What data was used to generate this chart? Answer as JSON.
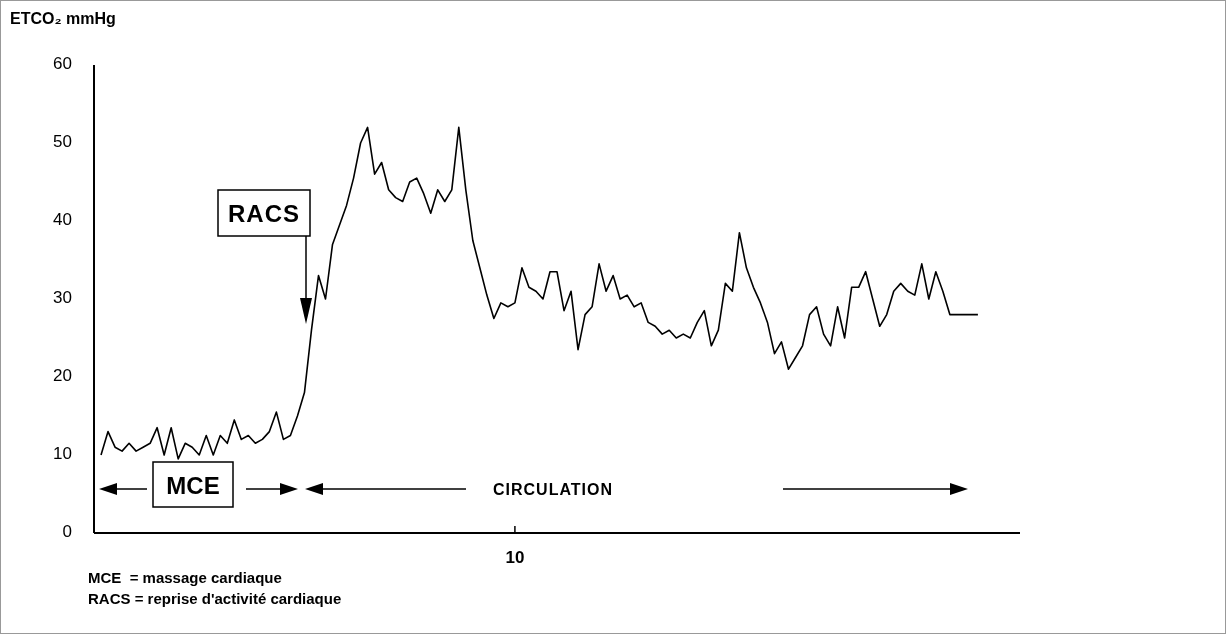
{
  "chart_data": {
    "type": "line",
    "ylabel": "ETCO₂ mmHg",
    "categories": [
      null,
      null,
      null,
      null,
      null,
      null,
      null,
      null,
      null,
      null,
      null,
      null,
      null,
      null,
      null,
      null,
      null,
      null,
      null,
      null,
      null,
      null,
      null,
      null,
      null,
      null,
      null,
      null,
      null,
      null,
      null,
      null,
      null,
      null,
      null,
      null,
      null,
      null,
      null,
      null,
      null,
      null,
      null,
      null,
      null,
      null,
      null,
      null,
      null,
      null,
      null,
      null,
      null,
      null,
      null,
      null,
      null,
      null,
      null,
      null,
      "10",
      null,
      null,
      null,
      null,
      null,
      null,
      null,
      null,
      null,
      null,
      null,
      null,
      null,
      null,
      null,
      null,
      null,
      null,
      null,
      null,
      null,
      null,
      null,
      null,
      null,
      null,
      null,
      null,
      null,
      null,
      null,
      null,
      null,
      null,
      null,
      null,
      null,
      null,
      null,
      null,
      null,
      null,
      null,
      null,
      null,
      null,
      null,
      null,
      null,
      null,
      null,
      null,
      null,
      null,
      null,
      null,
      null,
      null,
      null,
      null,
      null,
      null,
      null,
      null,
      null,
      null,
      null,
      null,
      null,
      null,
      null,
      null
    ],
    "values": [
      null,
      10,
      13,
      11,
      10.5,
      11.5,
      10.5,
      11,
      11.5,
      13.5,
      10,
      13.5,
      9.5,
      11.5,
      11,
      10,
      12.5,
      10,
      12.5,
      11.5,
      14.5,
      12,
      12.5,
      11.5,
      12,
      13,
      15.5,
      12,
      12.5,
      15,
      18,
      26,
      33,
      30,
      37,
      39.5,
      42,
      45.5,
      50,
      52,
      46,
      47.5,
      44,
      43,
      42.5,
      45,
      45.5,
      43.5,
      41,
      44,
      42.5,
      44,
      52,
      44,
      37.5,
      34,
      30.5,
      27.5,
      29.5,
      29,
      29.5,
      34,
      31.5,
      31,
      30,
      33.5,
      33.5,
      28.5,
      31,
      23.5,
      28,
      29,
      34.5,
      31,
      33,
      30,
      30.5,
      29,
      29.5,
      27,
      26.5,
      25.5,
      26,
      25,
      25.5,
      25,
      27,
      28.5,
      24,
      26,
      32,
      31,
      38.5,
      34,
      31.5,
      29.5,
      27,
      23,
      24.5,
      21,
      22.5,
      24,
      28,
      29,
      25.5,
      24,
      29,
      25,
      31.5,
      31.5,
      33.5,
      30,
      26.5,
      28,
      31,
      32,
      31,
      30.5,
      34.5,
      30,
      33.5,
      31,
      28,
      28,
      28,
      28,
      28,
      null,
      null,
      null,
      null,
      null,
      null
    ],
    "color": "#000000",
    "ylim": [
      0,
      60
    ],
    "yticks": [
      0,
      10,
      20,
      30,
      40,
      50,
      60
    ],
    "annotations": [
      "RACS",
      "MCE",
      "CIRCULATION",
      "MCE  = massage cardiaque",
      "RACS = reprise d'activité cardiaque"
    ]
  }
}
